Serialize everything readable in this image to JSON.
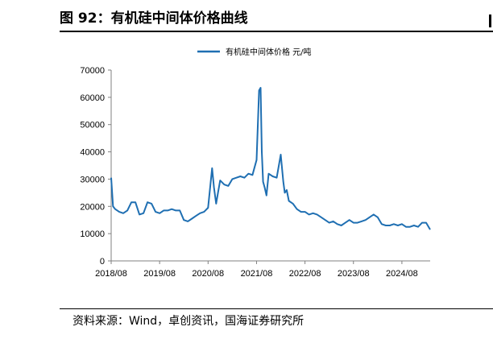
{
  "header": {
    "title": "图 92：有机硅中间体价格曲线"
  },
  "footer": {
    "source": "资料来源：Wind，卓创资讯，国海证券研究所"
  },
  "colors": {
    "series": "#1f6fb2",
    "axis": "#808080",
    "text": "#000000"
  },
  "chart_data": {
    "type": "line",
    "title": "",
    "xlabel": "",
    "ylabel": "",
    "legend": "top",
    "grid": false,
    "ylim": [
      0,
      70000
    ],
    "yticks": [
      0,
      10000,
      20000,
      30000,
      40000,
      50000,
      60000,
      70000
    ],
    "ytick_labels": [
      "0",
      "10000",
      "20000",
      "30000",
      "40000",
      "50000",
      "60000",
      "70000"
    ],
    "xlim": [
      "2018-08",
      "2025-03"
    ],
    "xticks": [
      "2018-08",
      "2019-08",
      "2020-08",
      "2021-08",
      "2022-08",
      "2023-08",
      "2024-08"
    ],
    "xtick_labels": [
      "2018/08",
      "2019/08",
      "2020/08",
      "2021/08",
      "2022/08",
      "2023/08",
      "2024/08"
    ],
    "series": [
      {
        "name": "有机硅中间体价格  元/吨",
        "x": [
          "2018-08",
          "2018-08-15",
          "2018-09",
          "2018-10",
          "2018-11",
          "2018-12",
          "2019-01",
          "2019-02",
          "2019-03",
          "2019-04",
          "2019-05",
          "2019-06",
          "2019-07",
          "2019-08",
          "2019-09",
          "2019-10",
          "2019-11",
          "2019-12",
          "2020-01",
          "2020-02",
          "2020-03",
          "2020-04",
          "2020-05",
          "2020-06",
          "2020-07",
          "2020-08",
          "2020-09",
          "2020-09-15",
          "2020-10",
          "2020-10-15",
          "2020-11",
          "2020-12",
          "2021-01",
          "2021-02",
          "2021-03",
          "2021-04",
          "2021-05",
          "2021-06",
          "2021-07",
          "2021-08",
          "2021-08-20",
          "2021-09",
          "2021-09-10",
          "2021-09-20",
          "2021-10",
          "2021-10-15",
          "2021-11",
          "2021-12",
          "2022-01",
          "2022-02",
          "2022-02-20",
          "2022-03",
          "2022-03-15",
          "2022-04",
          "2022-05",
          "2022-06",
          "2022-07",
          "2022-08",
          "2022-09",
          "2022-10",
          "2022-11",
          "2022-12",
          "2023-01",
          "2023-02",
          "2023-03",
          "2023-04",
          "2023-05",
          "2023-06",
          "2023-07",
          "2023-08",
          "2023-09",
          "2023-10",
          "2023-11",
          "2023-12",
          "2024-01",
          "2024-02",
          "2024-03",
          "2024-04",
          "2024-05",
          "2024-06",
          "2024-07",
          "2024-08",
          "2024-09",
          "2024-10",
          "2024-11",
          "2024-12",
          "2025-01",
          "2025-02",
          "2025-03"
        ],
        "values": [
          30500,
          20000,
          19000,
          18000,
          17500,
          18500,
          21500,
          21500,
          17000,
          17500,
          21500,
          21000,
          18000,
          17500,
          18500,
          18500,
          19000,
          18500,
          18500,
          15000,
          14500,
          15500,
          16500,
          17500,
          18000,
          19500,
          34000,
          27000,
          21000,
          25000,
          29500,
          28000,
          27500,
          30000,
          30500,
          31000,
          30500,
          32000,
          31500,
          37000,
          62500,
          63500,
          40000,
          29000,
          27000,
          24000,
          32000,
          31000,
          30500,
          39000,
          29000,
          25000,
          26000,
          22000,
          21000,
          19000,
          18000,
          18000,
          17000,
          17500,
          17000,
          16000,
          15000,
          14000,
          14500,
          13500,
          13000,
          14000,
          15000,
          14000,
          14000,
          14500,
          15000,
          16000,
          17000,
          16000,
          13500,
          13000,
          13000,
          13500,
          13000,
          13500,
          12500,
          12500,
          13000,
          12500,
          14000,
          14000,
          11500
        ]
      }
    ]
  }
}
